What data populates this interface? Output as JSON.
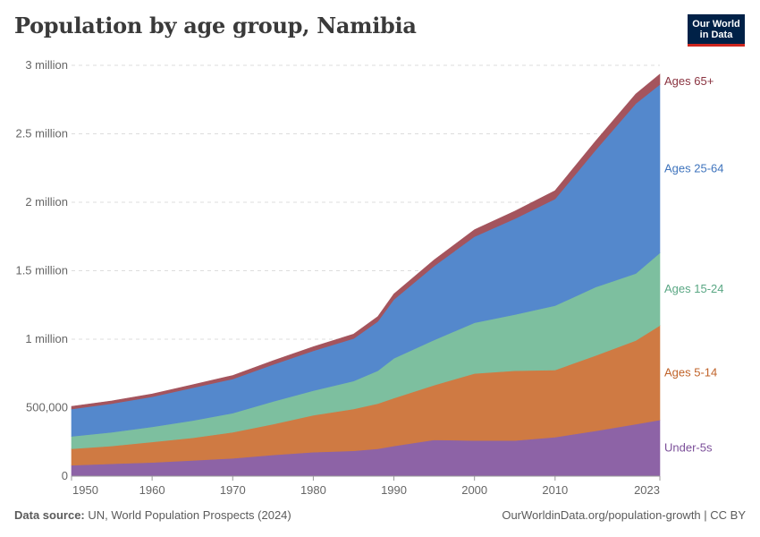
{
  "header": {
    "title": "Population by age group, Namibia",
    "logo_line1": "Our World",
    "logo_line2": "in Data"
  },
  "footer": {
    "source_label": "Data source:",
    "source_text": "UN, World Population Prospects (2024)",
    "link_text": "OurWorldinData.org/population-growth | CC BY"
  },
  "colors": {
    "Under-5s": "#8d63a6",
    "Ages 5-14": "#cf7a43",
    "Ages 15-24": "#7dbf9f",
    "Ages 25-64": "#5488cc",
    "Ages 65+": "#a4545d"
  },
  "label_colors": {
    "Under-5s": "#7b4f99",
    "Ages 5-14": "#c0632a",
    "Ages 15-24": "#5aa784",
    "Ages 25-64": "#3f74bd",
    "Ages 65+": "#8a3340"
  },
  "chart_data": {
    "type": "area",
    "stacked": true,
    "title": "Population by age group, Namibia",
    "xlabel": "",
    "ylabel": "",
    "xlim": [
      1950,
      2023
    ],
    "ylim": [
      0,
      3000000
    ],
    "x_ticks": [
      1950,
      1960,
      1970,
      1980,
      1990,
      2000,
      2010,
      2023
    ],
    "x_tick_labels": [
      "1950",
      "1960",
      "1970",
      "1980",
      "1990",
      "2000",
      "2010",
      "2023"
    ],
    "y_ticks": [
      0,
      500000,
      1000000,
      1500000,
      2000000,
      2500000,
      3000000
    ],
    "y_tick_labels": [
      "0",
      "500,000",
      "1 million",
      "1.5 million",
      "2 million",
      "2.5 million",
      "3 million"
    ],
    "grid": true,
    "legend": "right-end labels",
    "x": [
      1950,
      1955,
      1960,
      1965,
      1970,
      1975,
      1980,
      1985,
      1988,
      1990,
      1995,
      2000,
      2005,
      2010,
      2015,
      2020,
      2023
    ],
    "series": [
      {
        "name": "Under-5s",
        "values": [
          80000,
          90000,
          100000,
          115000,
          130000,
          155000,
          175000,
          185000,
          200000,
          220000,
          265000,
          260000,
          260000,
          285000,
          330000,
          380000,
          410000
        ]
      },
      {
        "name": "Ages 5-14",
        "values": [
          120000,
          130000,
          150000,
          165000,
          190000,
          225000,
          270000,
          305000,
          330000,
          350000,
          400000,
          490000,
          510000,
          490000,
          550000,
          610000,
          690000
        ]
      },
      {
        "name": "Ages 15-24",
        "values": [
          90000,
          100000,
          110000,
          125000,
          140000,
          165000,
          180000,
          205000,
          240000,
          290000,
          330000,
          370000,
          410000,
          470000,
          500000,
          490000,
          530000
        ]
      },
      {
        "name": "Ages 25-64",
        "values": [
          200000,
          210000,
          220000,
          240000,
          250000,
          270000,
          290000,
          310000,
          360000,
          430000,
          540000,
          630000,
          700000,
          780000,
          1000000,
          1240000,
          1230000
        ]
      },
      {
        "name": "Ages 65+",
        "values": [
          20000,
          20000,
          20000,
          22000,
          25000,
          28000,
          30000,
          32000,
          35000,
          40000,
          45000,
          50000,
          55000,
          60000,
          65000,
          70000,
          75000
        ]
      }
    ]
  }
}
